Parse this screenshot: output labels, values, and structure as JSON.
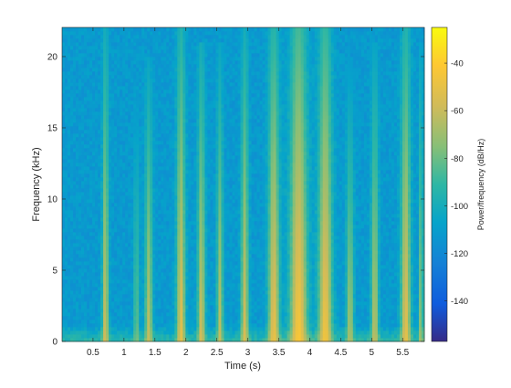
{
  "chart_data": {
    "type": "heatmap",
    "title": "",
    "xlabel": "Time (s)",
    "ylabel": "Frequency (kHz)",
    "colorbar_label": "Power/frequency (dB/Hz)",
    "xlim": [
      0,
      5.85
    ],
    "ylim": [
      0,
      22.05
    ],
    "clim": [
      -157,
      -25
    ],
    "x_ticks": [
      0.5,
      1,
      1.5,
      2,
      2.5,
      3,
      3.5,
      4,
      4.5,
      5,
      5.5
    ],
    "x_tick_labels": [
      "0.5",
      "1",
      "1.5",
      "2",
      "2.5",
      "3",
      "3.5",
      "4",
      "4.5",
      "5",
      "5.5"
    ],
    "y_ticks": [
      0,
      5,
      10,
      15,
      20
    ],
    "y_tick_labels": [
      "0",
      "5",
      "10",
      "15",
      "20"
    ],
    "colorbar_ticks": [
      -140,
      -120,
      -100,
      -80,
      -60,
      -40
    ],
    "colorbar_tick_labels": [
      "-140",
      "-120",
      "-100",
      "-80",
      "-60",
      "-40"
    ],
    "colormap": "parula",
    "background_level_db": -112,
    "bursts": [
      {
        "t": 0.7,
        "w": 0.05,
        "f_top": 22.0,
        "low_db": -55
      },
      {
        "t": 1.2,
        "w": 0.04,
        "f_top": 21.0,
        "low_db": -75
      },
      {
        "t": 1.4,
        "w": 0.06,
        "f_top": 20.0,
        "low_db": -60
      },
      {
        "t": 1.92,
        "w": 0.07,
        "f_top": 22.0,
        "low_db": -50
      },
      {
        "t": 2.25,
        "w": 0.06,
        "f_top": 21.0,
        "low_db": -55
      },
      {
        "t": 2.55,
        "w": 0.05,
        "f_top": 21.0,
        "low_db": -60
      },
      {
        "t": 2.95,
        "w": 0.06,
        "f_top": 22.0,
        "low_db": -55
      },
      {
        "t": 3.42,
        "w": 0.09,
        "f_top": 22.0,
        "low_db": -48
      },
      {
        "t": 3.82,
        "w": 0.14,
        "f_top": 22.0,
        "low_db": -42
      },
      {
        "t": 4.25,
        "w": 0.11,
        "f_top": 22.0,
        "low_db": -45
      },
      {
        "t": 4.65,
        "w": 0.06,
        "f_top": 20.0,
        "low_db": -65
      },
      {
        "t": 5.05,
        "w": 0.06,
        "f_top": 21.0,
        "low_db": -60
      },
      {
        "t": 5.55,
        "w": 0.08,
        "f_top": 22.0,
        "low_db": -50
      },
      {
        "t": 5.8,
        "w": 0.03,
        "f_top": 21.0,
        "low_db": -60
      }
    ]
  }
}
